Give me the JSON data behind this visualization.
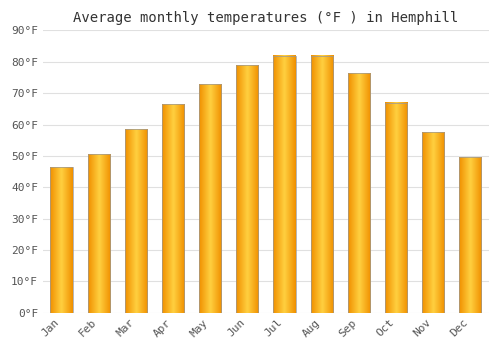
{
  "title": "Average monthly temperatures (°F ) in Hemphill",
  "months": [
    "Jan",
    "Feb",
    "Mar",
    "Apr",
    "May",
    "Jun",
    "Jul",
    "Aug",
    "Sep",
    "Oct",
    "Nov",
    "Dec"
  ],
  "values": [
    46.5,
    50.5,
    58.5,
    66.5,
    73,
    79,
    82,
    82,
    76.5,
    67,
    57.5,
    49.5
  ],
  "bar_color_center": "#FFD040",
  "bar_color_edge": "#F09000",
  "bar_border_color": "#999999",
  "ylim": [
    0,
    90
  ],
  "yticks": [
    0,
    10,
    20,
    30,
    40,
    50,
    60,
    70,
    80,
    90
  ],
  "ytick_labels": [
    "0°F",
    "10°F",
    "20°F",
    "30°F",
    "40°F",
    "50°F",
    "60°F",
    "70°F",
    "80°F",
    "90°F"
  ],
  "background_color": "#ffffff",
  "grid_color": "#e0e0e0",
  "title_fontsize": 10,
  "tick_fontsize": 8,
  "bar_width": 0.6
}
